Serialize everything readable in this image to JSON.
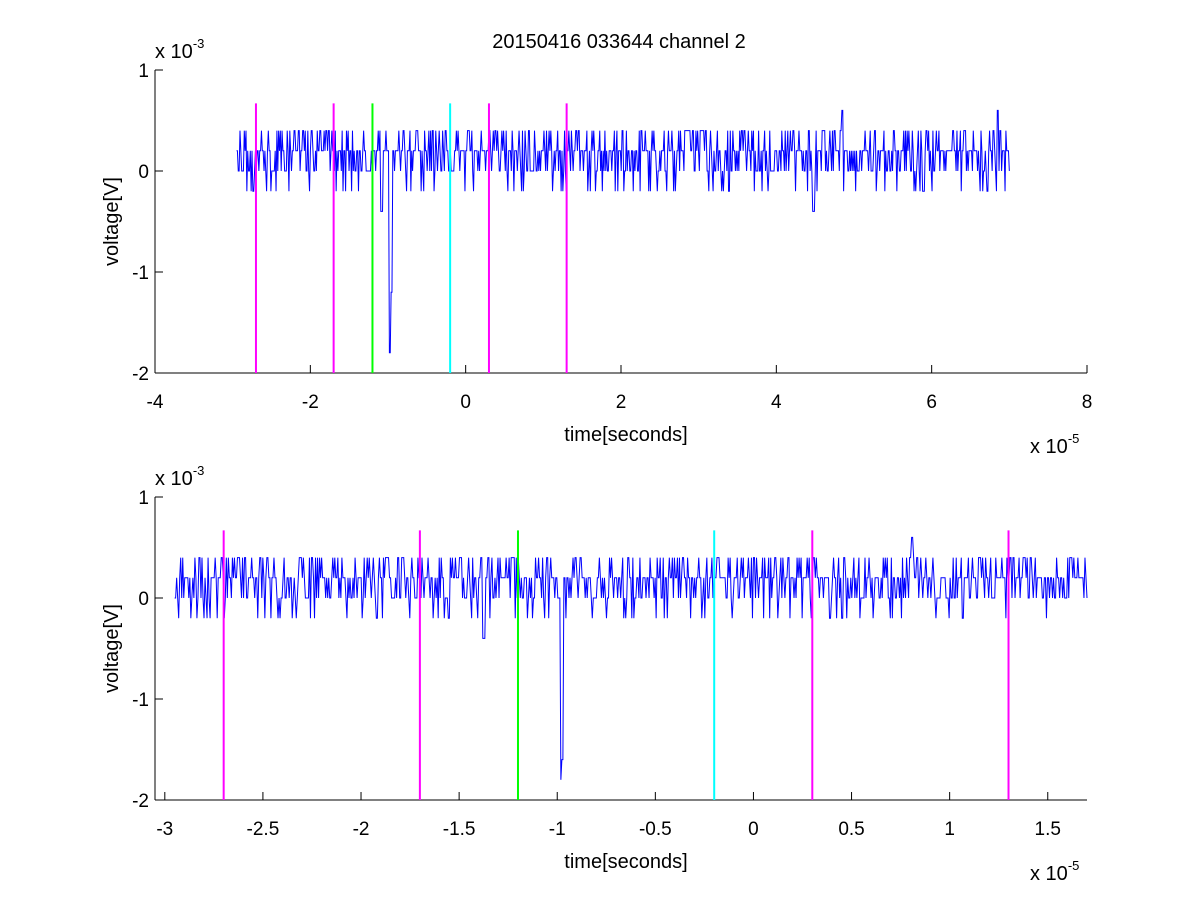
{
  "figure": {
    "title": "20150416 033644 channel 2"
  },
  "chart_data": [
    {
      "type": "line",
      "xlabel": "time[seconds]",
      "ylabel": "voltage[V]",
      "x_multiplier": "x 10",
      "x_exponent": "-5",
      "y_multiplier": "x 10",
      "y_exponent": "-3",
      "xlim": [
        -4,
        8
      ],
      "ylim": [
        -2,
        1
      ],
      "xticks": [
        -4,
        -2,
        0,
        2,
        4,
        6,
        8
      ],
      "xtick_labels": [
        "-4",
        "-2",
        "0",
        "2",
        "4",
        "6",
        "8"
      ],
      "yticks": [
        -2,
        -1,
        0,
        1
      ],
      "ytick_labels": [
        "-2",
        "-1",
        "0",
        "1"
      ],
      "grid": false,
      "series": [
        {
          "color": "#0000ff",
          "x_start": -2.95,
          "x_end": 7.0,
          "baseline_levels": [
            0,
            0.2,
            0.4,
            -0.2
          ],
          "spikes": [
            {
              "x": -1.08,
              "y": -0.4
            },
            {
              "x": -0.97,
              "y": -1.8
            },
            {
              "x": -0.955,
              "y": -1.2
            },
            {
              "x": 4.48,
              "y": -0.4
            },
            {
              "x": 4.85,
              "y": 0.6
            },
            {
              "x": 6.85,
              "y": 0.6
            }
          ]
        }
      ],
      "vlines": [
        {
          "x": -2.7,
          "color": "#ff00ff",
          "y_range": [
            -2,
            0.67
          ]
        },
        {
          "x": -1.7,
          "color": "#ff00ff",
          "y_range": [
            -2,
            0.67
          ]
        },
        {
          "x": -1.2,
          "color": "#00ff00",
          "y_range": [
            -2,
            0.67
          ]
        },
        {
          "x": -0.2,
          "color": "#00ffff",
          "y_range": [
            -2,
            0.67
          ]
        },
        {
          "x": 0.3,
          "color": "#ff00ff",
          "y_range": [
            -2,
            0.67
          ]
        },
        {
          "x": 1.3,
          "color": "#ff00ff",
          "y_range": [
            -2,
            0.67
          ]
        }
      ]
    },
    {
      "type": "line",
      "xlabel": "time[seconds]",
      "ylabel": "voltage[V]",
      "x_multiplier": "x 10",
      "x_exponent": "-5",
      "y_multiplier": "x 10",
      "y_exponent": "-3",
      "xlim": [
        -3.05,
        1.7
      ],
      "ylim": [
        -2,
        1
      ],
      "xticks": [
        -3,
        -2.5,
        -2,
        -1.5,
        -1,
        -0.5,
        0,
        0.5,
        1,
        1.5
      ],
      "xtick_labels": [
        "-3",
        "-2.5",
        "-2",
        "-1.5",
        "-1",
        "-0.5",
        "0",
        "0.5",
        "1",
        "1.5"
      ],
      "yticks": [
        -2,
        -1,
        0,
        1
      ],
      "ytick_labels": [
        "-2",
        "-1",
        "0",
        "1"
      ],
      "grid": false,
      "series": [
        {
          "color": "#0000ff",
          "x_start": -2.95,
          "x_end": 1.7,
          "baseline_levels": [
            0,
            0.2,
            0.4,
            -0.2
          ],
          "spikes": [
            {
              "x": -1.375,
              "y": -0.4
            },
            {
              "x": -0.98,
              "y": -1.8
            },
            {
              "x": -0.975,
              "y": -1.6
            },
            {
              "x": 0.81,
              "y": 0.6
            }
          ]
        }
      ],
      "vlines": [
        {
          "x": -2.7,
          "color": "#ff00ff",
          "y_range": [
            -2,
            0.67
          ]
        },
        {
          "x": -1.7,
          "color": "#ff00ff",
          "y_range": [
            -2,
            0.67
          ]
        },
        {
          "x": -1.2,
          "color": "#00ff00",
          "y_range": [
            -2,
            0.67
          ]
        },
        {
          "x": -0.2,
          "color": "#00ffff",
          "y_range": [
            -2,
            0.67
          ]
        },
        {
          "x": 0.3,
          "color": "#ff00ff",
          "y_range": [
            -2,
            0.67
          ]
        },
        {
          "x": 1.3,
          "color": "#ff00ff",
          "y_range": [
            -2,
            0.67
          ]
        }
      ]
    }
  ]
}
